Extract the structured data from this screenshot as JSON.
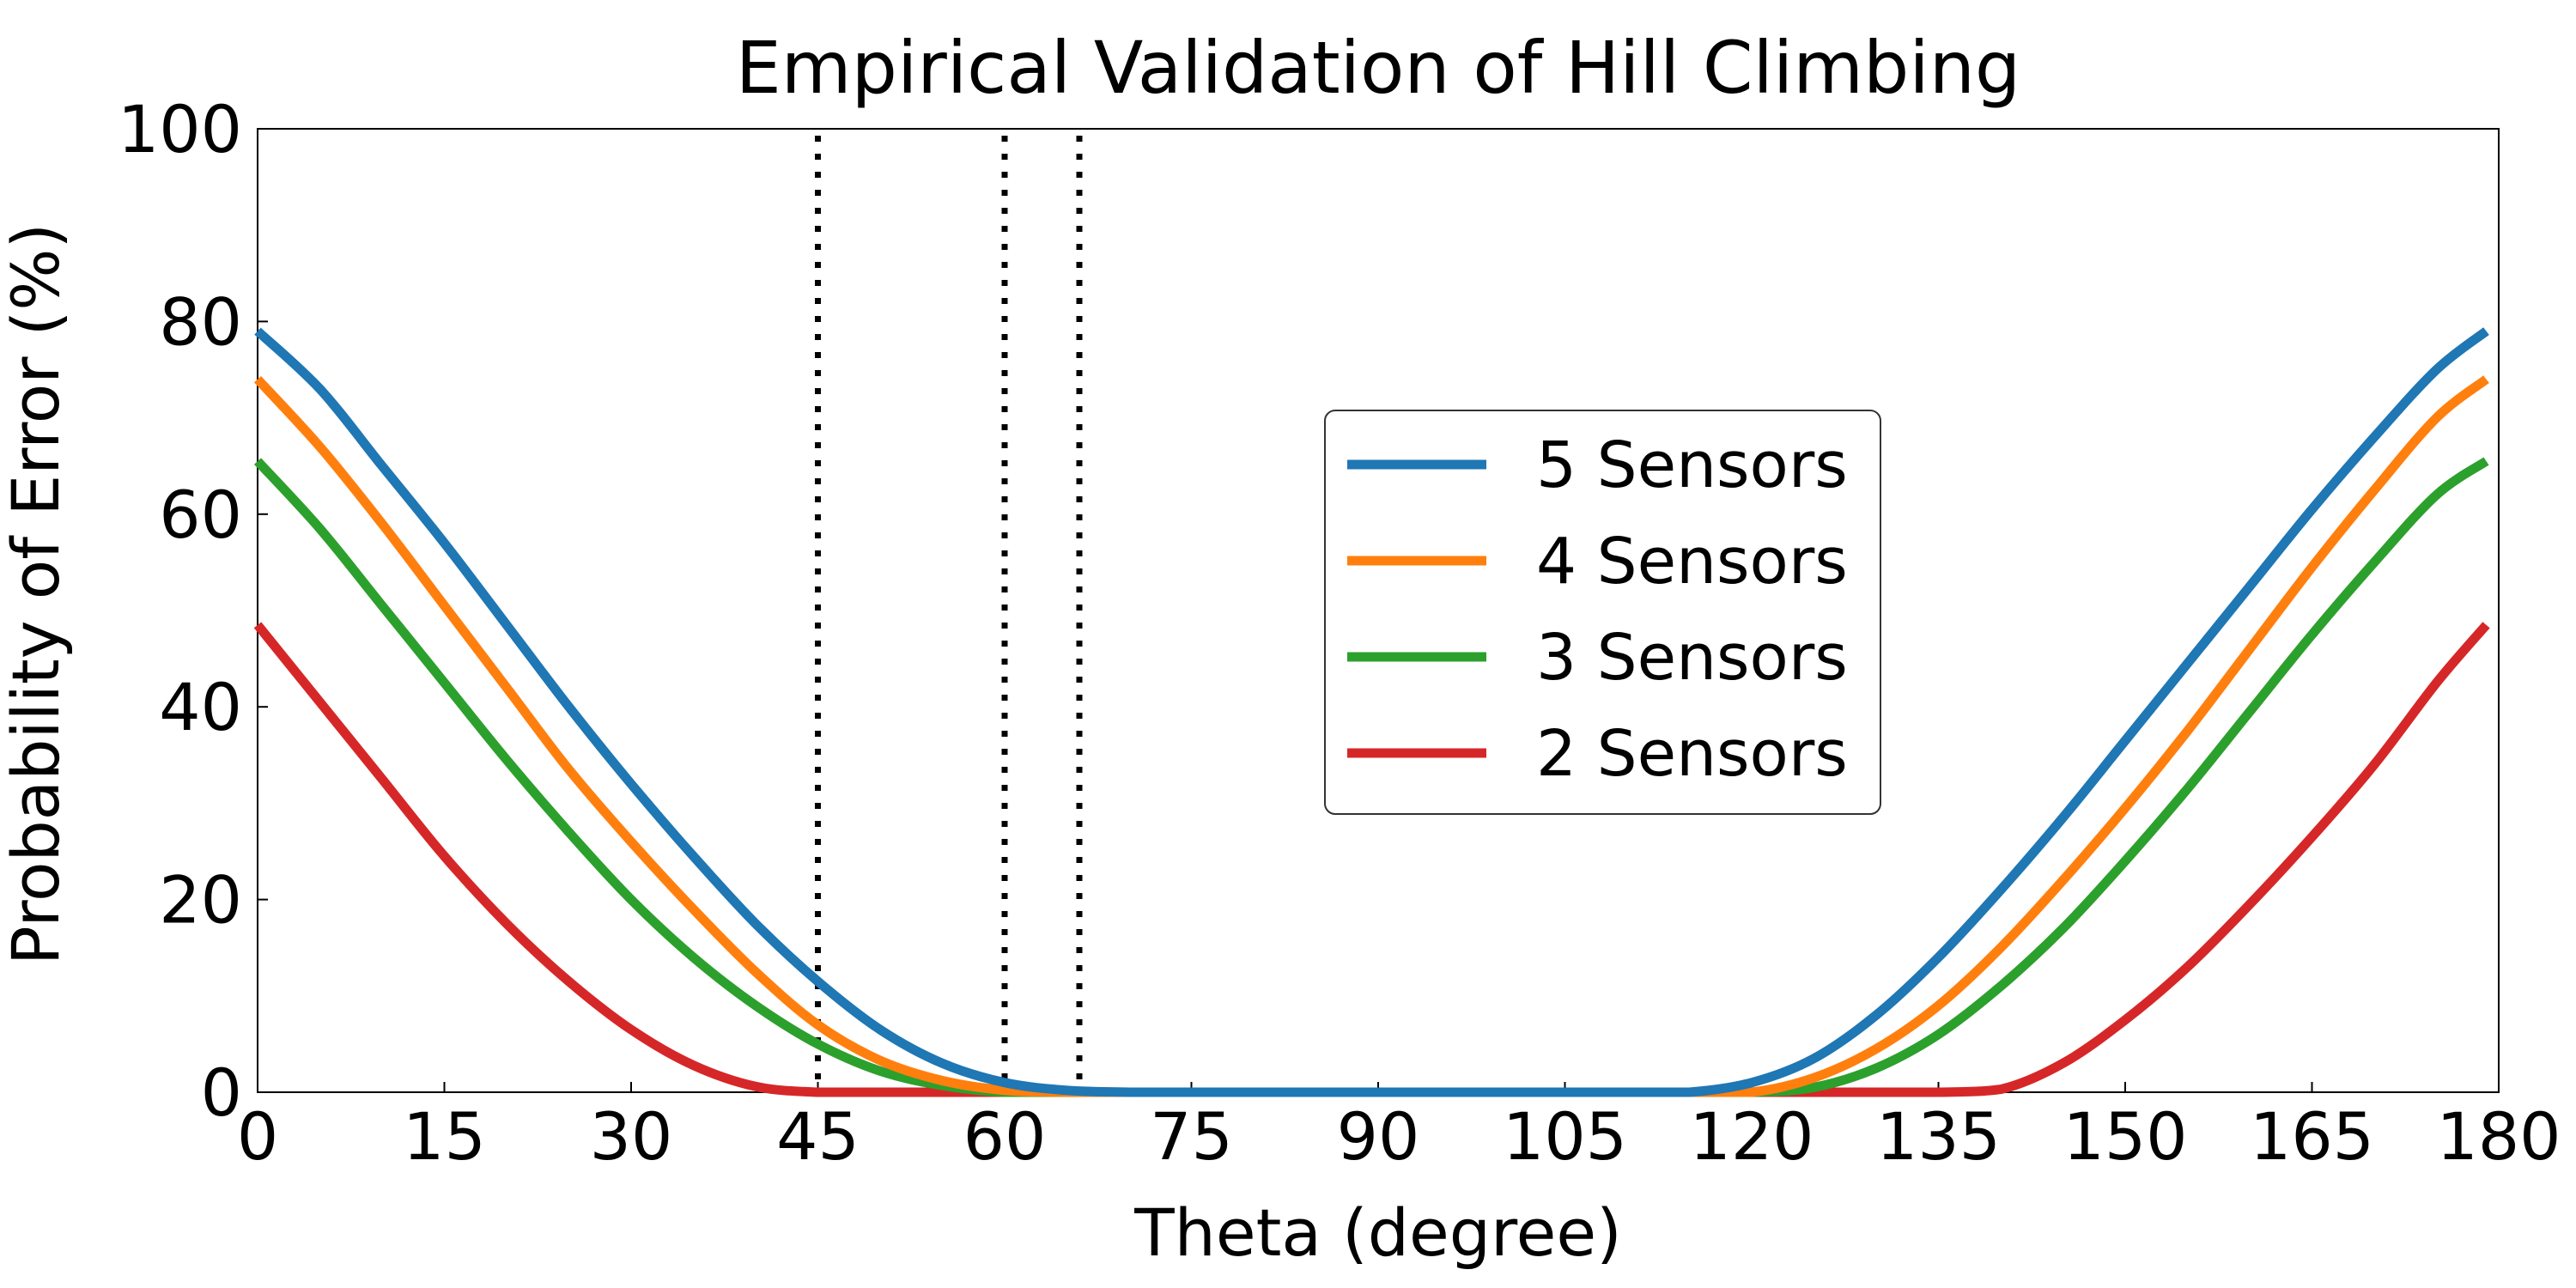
{
  "chart_data": {
    "type": "line",
    "title": "Empirical Validation of Hill Climbing",
    "xlabel": "Theta (degree)",
    "ylabel": "Probability of Error (%)",
    "xlim": [
      0,
      180
    ],
    "ylim": [
      0,
      100
    ],
    "xticks": [
      "0",
      "15",
      "30",
      "45",
      "60",
      "75",
      "90",
      "105",
      "120",
      "135",
      "150",
      "165",
      "180"
    ],
    "yticks": [
      "0",
      "20",
      "40",
      "60",
      "80",
      "100"
    ],
    "grid": false,
    "legend_position": "center-right",
    "vlines": [
      45,
      60,
      66
    ],
    "x": [
      0,
      5,
      10,
      15,
      20,
      25,
      30,
      35,
      40,
      45,
      50,
      55,
      60,
      65,
      70,
      75,
      80,
      85,
      90,
      95,
      100,
      105,
      110,
      115,
      120,
      125,
      130,
      135,
      140,
      145,
      150,
      155,
      160,
      165,
      170,
      175,
      179
    ],
    "series": [
      {
        "name": "5 Sensors",
        "color": "#1f77b4",
        "values": [
          79,
          73,
          65,
          57,
          48.5,
          40,
          32,
          24.5,
          17.5,
          11.5,
          6.5,
          3,
          1,
          0.2,
          0,
          0,
          0,
          0,
          0,
          0,
          0,
          0,
          0,
          0,
          1,
          3.5,
          8,
          14,
          21,
          28.5,
          36.5,
          44.5,
          52.5,
          60.5,
          68,
          75,
          79
        ]
      },
      {
        "name": "4 Sensors",
        "color": "#ff7f0e",
        "values": [
          74,
          67,
          59,
          50.5,
          42,
          33.5,
          26,
          19,
          12.5,
          7,
          3.3,
          1.2,
          0.2,
          0,
          0,
          0,
          0,
          0,
          0,
          0,
          0,
          0,
          0,
          0,
          0,
          1.5,
          4.5,
          9,
          15,
          22,
          29.5,
          37.5,
          46,
          54.5,
          62.5,
          70,
          74
        ]
      },
      {
        "name": "3 Sensors",
        "color": "#2ca02c",
        "values": [
          65.5,
          58.5,
          50.5,
          42.5,
          34.5,
          27,
          20,
          14,
          9,
          5,
          2.2,
          0.7,
          0,
          0,
          0,
          0,
          0,
          0,
          0,
          0,
          0,
          0,
          0,
          0,
          0,
          0.5,
          2.5,
          6,
          11,
          17,
          24,
          31.5,
          39.5,
          47.5,
          55,
          62,
          65.5
        ]
      },
      {
        "name": "2 Sensors",
        "color": "#d62728",
        "values": [
          48.5,
          40.5,
          32.5,
          24.5,
          17.5,
          11.5,
          6.5,
          2.8,
          0.6,
          0,
          0,
          0,
          0,
          0,
          0,
          0,
          0,
          0,
          0,
          0,
          0,
          0,
          0,
          0,
          0,
          0,
          0,
          0,
          0.3,
          3,
          7.5,
          13,
          19.5,
          26.5,
          34,
          42.5,
          48.5
        ]
      }
    ]
  }
}
